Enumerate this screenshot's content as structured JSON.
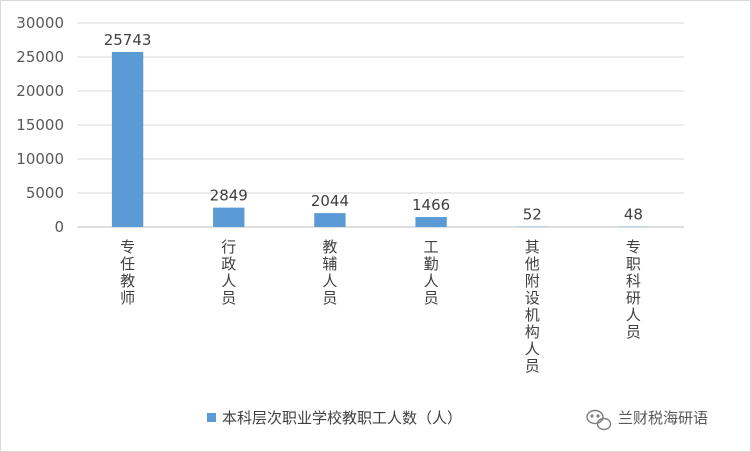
{
  "chart_data": {
    "type": "bar",
    "categories": [
      "专任教师",
      "行政人员",
      "教辅人员",
      "工勤人员",
      "其他附设机构人员",
      "专职科研人员"
    ],
    "series": [
      {
        "name": "本科层次职业学校教职工人数（人）",
        "values": [
          25743,
          2849,
          2044,
          1466,
          52,
          48
        ],
        "color": "#5b9bd5"
      }
    ],
    "data_labels": [
      "25743",
      "2849",
      "2044",
      "1466",
      "52",
      "48"
    ],
    "y_ticks": [
      "0",
      "5000",
      "10000",
      "15000",
      "20000",
      "25000",
      "30000"
    ],
    "ylim": [
      0,
      30000
    ],
    "grid": true,
    "legend_position": "bottom"
  },
  "watermark": {
    "text": "兰财税海研语",
    "icon": "wechat-icon"
  }
}
